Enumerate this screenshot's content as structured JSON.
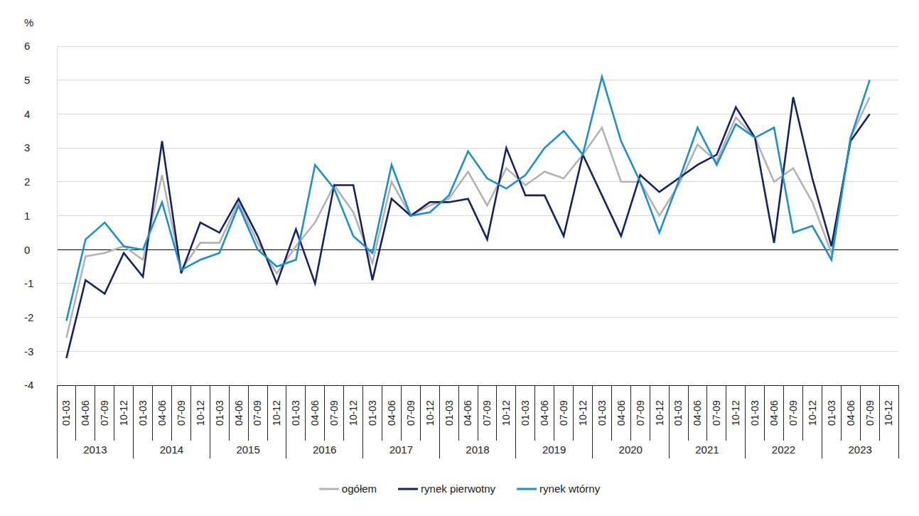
{
  "chart_data": {
    "type": "line",
    "y_label": "%",
    "categories": [
      "01-03",
      "04-06",
      "07-09",
      "10-12",
      "01-03",
      "04-06",
      "07-09",
      "10-12",
      "01-03",
      "04-06",
      "07-09",
      "10-12",
      "01-03",
      "04-06",
      "07-09",
      "10-12",
      "01-03",
      "04-06",
      "07-09",
      "10-12",
      "01-03",
      "04-06",
      "07-09",
      "10-12",
      "01-03",
      "04-06",
      "07-09",
      "10-12",
      "01-03",
      "04-06",
      "07-09",
      "10-12",
      "01-03",
      "04-06",
      "07-09",
      "10-12",
      "01-03",
      "04-06",
      "07-09",
      "10-12",
      "01-03",
      "04-06",
      "07-09",
      "10-12"
    ],
    "groups": [
      "2013",
      "2014",
      "2015",
      "2016",
      "2017",
      "2018",
      "2019",
      "2020",
      "2021",
      "2022",
      "2023"
    ],
    "series": [
      {
        "name": "ogółem",
        "color": "#b3b3b3",
        "values": [
          -2.6,
          -0.2,
          -0.1,
          0.1,
          -0.3,
          2.2,
          -0.6,
          0.2,
          0.2,
          1.4,
          0.2,
          -0.7,
          0.1,
          0.8,
          1.9,
          1.1,
          -0.4,
          2.0,
          1.0,
          1.3,
          1.5,
          2.3,
          1.3,
          2.4,
          1.9,
          2.3,
          2.1,
          2.8,
          3.6,
          2.0,
          2.0,
          1.0,
          1.9,
          3.1,
          2.6,
          3.9,
          3.3,
          2.0,
          2.4,
          1.4,
          -0.1,
          3.3,
          4.5,
          null
        ]
      },
      {
        "name": "rynek pierwotny",
        "color": "#14226b",
        "values": [
          -3.2,
          -0.9,
          -1.3,
          -0.1,
          -0.8,
          3.2,
          -0.7,
          0.8,
          0.5,
          1.5,
          0.4,
          -1.0,
          0.6,
          -1.0,
          1.9,
          1.9,
          -0.9,
          1.5,
          1.0,
          1.4,
          1.4,
          1.5,
          0.3,
          3.0,
          1.6,
          1.6,
          0.4,
          2.8,
          1.6,
          0.4,
          2.2,
          1.7,
          2.1,
          2.5,
          2.8,
          4.2,
          3.3,
          0.2,
          4.5,
          2.1,
          0.1,
          3.2,
          4.0,
          null
        ]
      },
      {
        "name": "rynek wtórny",
        "color": "#1b8fd2",
        "values": [
          -2.1,
          0.3,
          0.8,
          0.1,
          0.0,
          1.4,
          -0.6,
          -0.3,
          -0.1,
          1.3,
          0.0,
          -0.5,
          -0.3,
          2.5,
          1.8,
          0.4,
          -0.1,
          2.5,
          1.0,
          1.1,
          1.6,
          2.9,
          2.1,
          1.8,
          2.2,
          3.0,
          3.5,
          2.8,
          5.1,
          3.2,
          2.0,
          0.5,
          2.0,
          3.6,
          2.5,
          3.7,
          3.3,
          3.6,
          0.5,
          0.7,
          -0.3,
          3.3,
          5.0,
          null
        ]
      }
    ],
    "ylim": [
      -4,
      6
    ],
    "yticks": [
      -4,
      -3,
      -2,
      -1,
      0,
      1,
      2,
      3,
      4,
      5,
      6
    ],
    "grid": true,
    "legend": "bottom"
  }
}
